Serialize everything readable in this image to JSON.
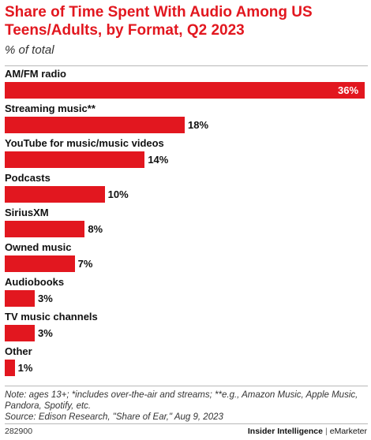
{
  "colors": {
    "accent": "#e2171f",
    "bar": "#e2171f"
  },
  "chart_data": {
    "type": "bar",
    "orientation": "horizontal",
    "title": "Share of Time Spent With Audio Among US Teens/Adults, by Format, Q2 2023",
    "subtitle": "% of total",
    "categories": [
      "AM/FM radio",
      "Streaming music**",
      "YouTube for music/music videos",
      "Podcasts",
      "SiriusXM",
      "Owned music",
      "Audiobooks",
      "TV music channels",
      "Other"
    ],
    "values": [
      36,
      18,
      14,
      10,
      8,
      7,
      3,
      3,
      1
    ],
    "value_labels": [
      "36%",
      "18%",
      "14%",
      "10%",
      "8%",
      "7%",
      "3%",
      "3%",
      "1%"
    ],
    "unit": "%",
    "xlim": [
      0,
      36
    ],
    "grid": false,
    "legend": "none"
  },
  "note": "Note: ages 13+; *includes over-the-air and streams; **e.g., Amazon Music, Apple Music, Pandora, Spotify, etc.",
  "source": "Source: Edison Research, \"Share of Ear,\" Aug 9, 2023",
  "footer": {
    "chart_id": "282900",
    "brand_primary": "Insider Intelligence",
    "separator": "|",
    "brand_secondary": "eMarketer"
  }
}
